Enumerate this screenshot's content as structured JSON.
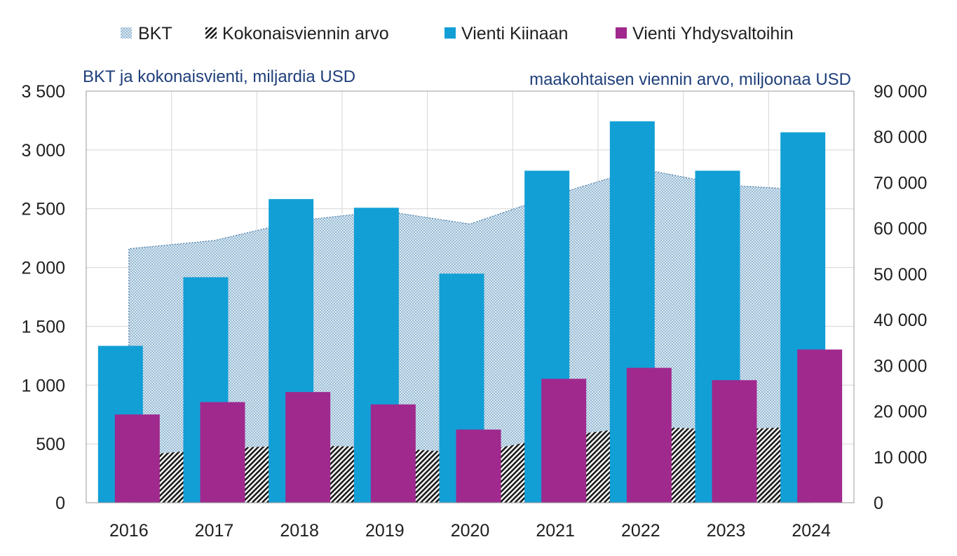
{
  "chart_data": {
    "type": "bar",
    "categories": [
      "2016",
      "2017",
      "2018",
      "2019",
      "2020",
      "2021",
      "2022",
      "2023",
      "2024"
    ],
    "ylabel": "BKT ja kokonaisvienti, miljardia USD",
    "ylabel_right": "maakohtaisen viennin arvo, miljoonaa USD",
    "ylim": [
      0,
      3500
    ],
    "ylim_right": [
      0,
      90000
    ],
    "yticks": [
      "0",
      "500",
      "1 000",
      "1 500",
      "2 000",
      "2 500",
      "3 000",
      "3 500"
    ],
    "yticks_right": [
      "0",
      "10 000",
      "20 000",
      "30 000",
      "40 000",
      "50 000",
      "60 000",
      "70 000",
      "80 000",
      "90 000"
    ],
    "grid": true,
    "legend_position": "top",
    "series": [
      {
        "name": "BKT",
        "kind": "area",
        "axis": "left",
        "color": "#b8d4e6",
        "values": [
          2160,
          2230,
          2400,
          2480,
          2370,
          2620,
          2840,
          2700,
          2660
        ]
      },
      {
        "name": "Kokonaisviennin arvo",
        "kind": "area",
        "axis": "left",
        "color": "#1a1a1a",
        "values": [
          395,
          460,
          490,
          470,
          420,
          560,
          650,
          620,
          650
        ]
      },
      {
        "name": "Vienti Kiinaan",
        "kind": "bar",
        "axis": "right",
        "color": "#129fd6",
        "values": [
          34300,
          49300,
          66400,
          64500,
          50100,
          72600,
          83400,
          72600,
          81000
        ]
      },
      {
        "name": "Vienti Yhdysvaltoihin",
        "kind": "bar",
        "axis": "right",
        "color": "#a0298e",
        "values": [
          19300,
          22000,
          24200,
          21500,
          16000,
          27100,
          29500,
          26800,
          33500
        ]
      }
    ]
  }
}
